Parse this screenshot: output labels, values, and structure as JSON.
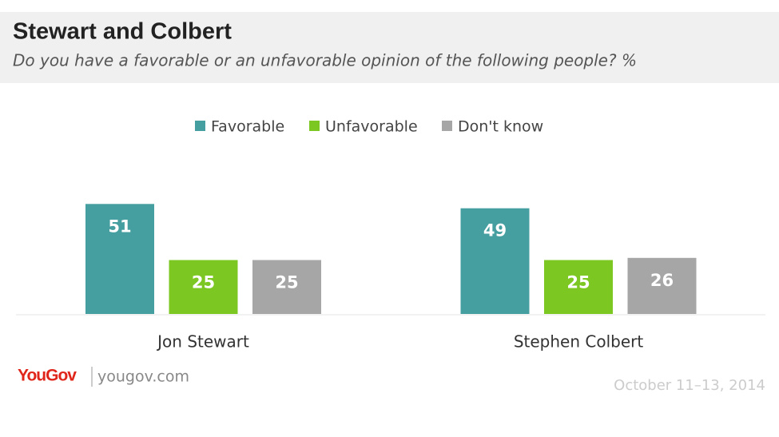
{
  "chart_data": {
    "type": "bar",
    "title": "Stewart and Colbert",
    "subtitle": "Do you have a favorable or an unfavorable opinion of the following people? %",
    "categories": [
      "Jon Stewart",
      "Stephen Colbert"
    ],
    "series": [
      {
        "name": "Favorable",
        "color": "#459e9f",
        "values": [
          51,
          49
        ]
      },
      {
        "name": "Unfavorable",
        "color": "#7dc723",
        "values": [
          25,
          25
        ]
      },
      {
        "name": "Don't know",
        "color": "#a6a6a6",
        "values": [
          25,
          26
        ]
      }
    ],
    "legend": "top"
  },
  "footer": {
    "logo": "YouGov",
    "site": "yougov.com",
    "date": "October 11–13, 2014"
  }
}
